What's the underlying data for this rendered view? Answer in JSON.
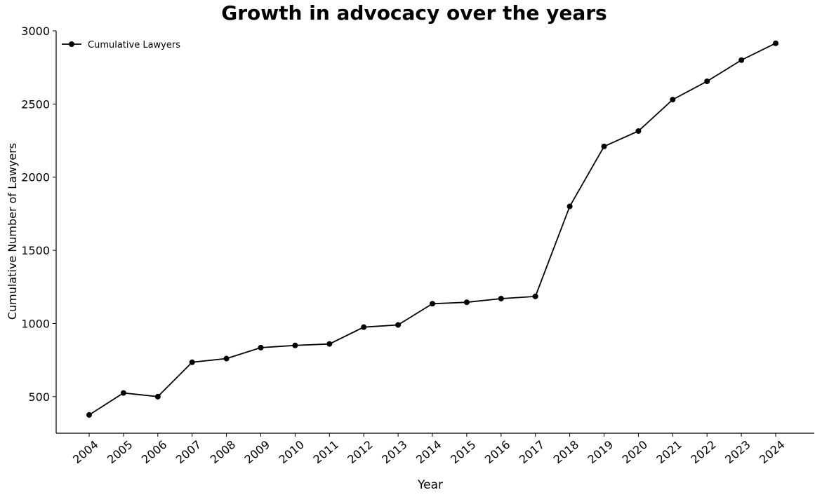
{
  "chart_data": {
    "type": "line",
    "title": "Growth in advocacy over the years",
    "xlabel": "Year",
    "ylabel": "Cumulative Number of Lawyers",
    "categories": [
      "2004",
      "2005",
      "2006",
      "2007",
      "2008",
      "2009",
      "2010",
      "2011",
      "2012",
      "2013",
      "2014",
      "2015",
      "2016",
      "2017",
      "2018",
      "2019",
      "2020",
      "2021",
      "2022",
      "2023",
      "2024"
    ],
    "series": [
      {
        "name": "Cumulative Lawyers",
        "values": [
          375,
          525,
          500,
          735,
          760,
          835,
          850,
          860,
          975,
          990,
          1135,
          1145,
          1170,
          1185,
          1800,
          2210,
          2315,
          2530,
          2655,
          2800,
          2915
        ]
      }
    ],
    "yticks": [
      "500",
      "1000",
      "1500",
      "2000",
      "2500",
      "3000"
    ],
    "ylim": [
      250,
      3000
    ],
    "grid": false,
    "legend": "top-left",
    "line_color": "#000000"
  }
}
